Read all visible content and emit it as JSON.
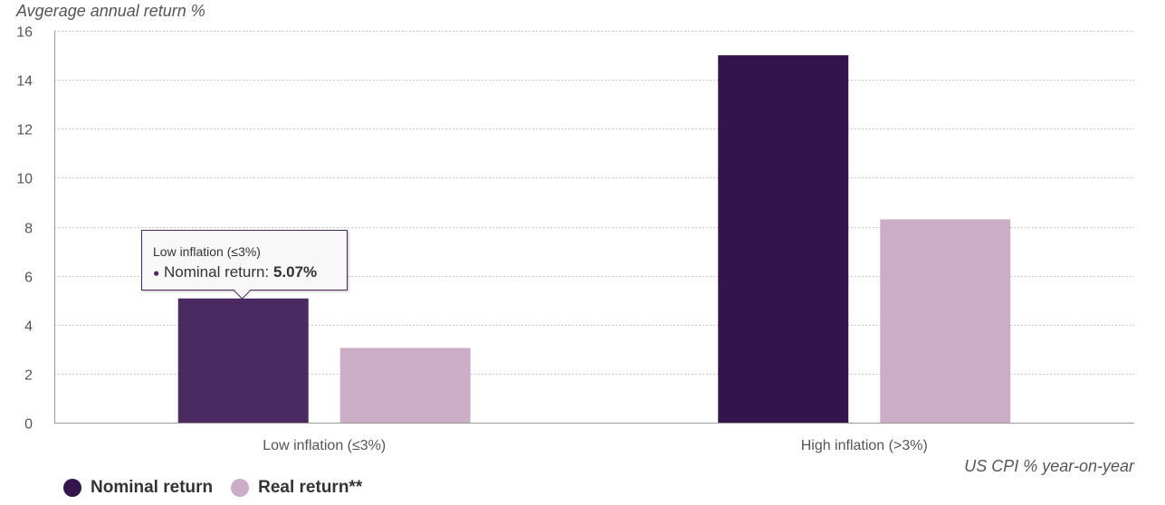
{
  "chart_data": {
    "type": "bar",
    "title": "",
    "ylabel": "Avgerage annual return %",
    "xlabel": "US CPI % year-on-year",
    "categories": [
      "Low inflation (≤3%)",
      "High inflation (>3%)"
    ],
    "series": [
      {
        "name": "Nominal return",
        "values": [
          5.07,
          15.0
        ]
      },
      {
        "name": "Real return**",
        "values": [
          3.05,
          8.3
        ]
      }
    ],
    "ylim": [
      0,
      16
    ],
    "yticks": [
      0,
      2,
      4,
      6,
      8,
      10,
      12,
      14,
      16
    ],
    "grid": true,
    "legend_position": "bottom-left"
  },
  "colors": {
    "nominal": "#33144b",
    "nominal_hover": "#4a2a61",
    "real": "#cbadc5",
    "grid": "#c8c8c8",
    "axis": "#999999",
    "tick_text": "#555555"
  },
  "tooltip": {
    "category": "Low inflation (≤3%)",
    "series": "Nominal return",
    "separator": ":",
    "value": "5.07%"
  }
}
